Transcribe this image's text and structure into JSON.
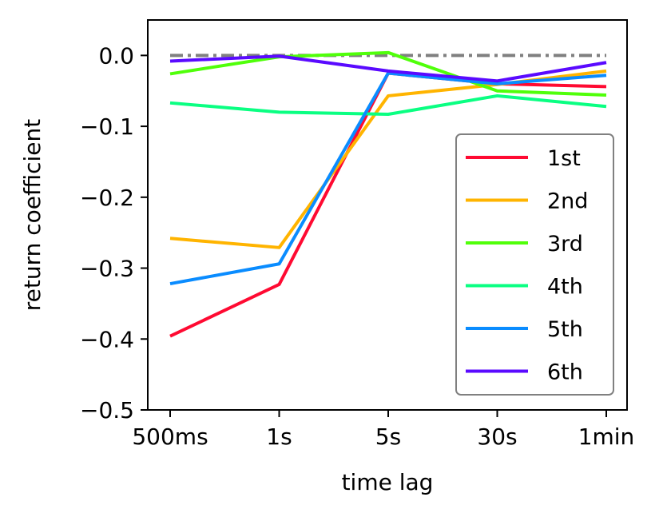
{
  "chart_data": {
    "type": "line",
    "title": "",
    "xlabel": "time lag",
    "ylabel": "return coefficient",
    "categories": [
      "500ms",
      "1s",
      "5s",
      "30s",
      "1min"
    ],
    "ylim": [
      -0.5,
      0.05
    ],
    "yticks": [
      0.0,
      -0.1,
      -0.2,
      -0.3,
      -0.4,
      -0.5
    ],
    "ytick_labels": [
      "0.0",
      "−0.1",
      "−0.2",
      "−0.3",
      "−0.4",
      "−0.5"
    ],
    "grid": false,
    "legend_position": "lower-right",
    "reference_line": {
      "y": 0.0,
      "style": "dash-dot",
      "color": "#808080"
    },
    "series": [
      {
        "name": "1st",
        "color": "#ff0a32",
        "values": [
          -0.396,
          -0.323,
          -0.025,
          -0.04,
          -0.044
        ]
      },
      {
        "name": "2nd",
        "color": "#ffb400",
        "values": [
          -0.258,
          -0.271,
          -0.057,
          -0.041,
          -0.022
        ]
      },
      {
        "name": "3rd",
        "color": "#50ff0a",
        "values": [
          -0.026,
          -0.002,
          0.004,
          -0.05,
          -0.056
        ]
      },
      {
        "name": "4th",
        "color": "#0aff82",
        "values": [
          -0.067,
          -0.08,
          -0.083,
          -0.057,
          -0.072
        ]
      },
      {
        "name": "5th",
        "color": "#0a8cff",
        "values": [
          -0.322,
          -0.294,
          -0.025,
          -0.04,
          -0.028
        ]
      },
      {
        "name": "6th",
        "color": "#5a0aff",
        "values": [
          -0.008,
          -0.001,
          -0.022,
          -0.036,
          -0.01
        ]
      }
    ]
  }
}
